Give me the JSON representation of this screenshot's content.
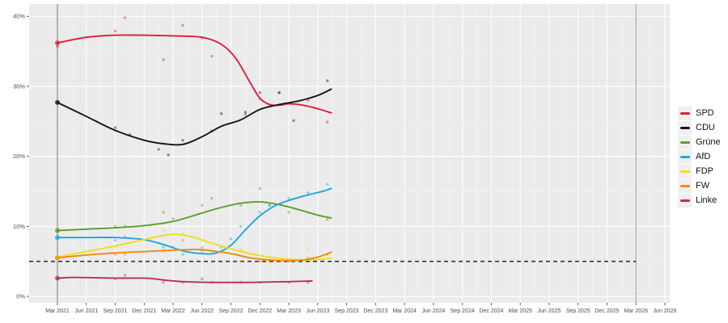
{
  "chart_data": {
    "type": "line",
    "title": "",
    "description": "State election poll tracker: smoothed trend lines with individual poll scatter points, 5% threshold dashed line, election-date reference lines",
    "x_axis": {
      "tick_labels": [
        "Mar 2021",
        "Jun 2021",
        "Sep 2021",
        "Dec 2021",
        "Mar 2022",
        "Jun 2022",
        "Sep 2022",
        "Dec 2022",
        "Mar 2023",
        "Jun 2023",
        "Sep 2023",
        "Dec 2023",
        "Mar 2024",
        "Jun 2024",
        "Sep 2024",
        "Dec 2024",
        "Mar 2025",
        "Jun 2025",
        "Sep 2025",
        "Dec 2025",
        "Mar 2026",
        "Jun 2026"
      ],
      "unit": "quarter"
    },
    "y_axis": {
      "tick_labels": [
        "0%",
        "10%",
        "20%",
        "30%",
        "40%"
      ],
      "ticks": [
        0,
        10,
        20,
        30,
        40
      ],
      "minor_ticks": [
        5,
        15,
        25,
        35
      ],
      "range": [
        0,
        42
      ]
    },
    "threshold_line": {
      "value": 5,
      "style": "dashed",
      "color": "#333333",
      "meaning": "5% threshold"
    },
    "reference_lines": [
      {
        "x_label": "Mar 2021",
        "t_months": 0,
        "color": "#7a7a7a",
        "meaning": "last election"
      },
      {
        "x_label": "Mar 2026",
        "t_months": 60,
        "color": "#9b9b9b",
        "meaning": "next election"
      }
    ],
    "election_2021": {
      "SPD": 35.7,
      "CDU": 27.7,
      "Gruene": 9.3,
      "AfD": 8.3,
      "FDP": 5.5,
      "FW": 5.4,
      "Linke": 2.5
    },
    "series": [
      {
        "name": "SPD",
        "color": "#e01a3c",
        "trend": [
          [
            0,
            36.2
          ],
          [
            3,
            37.0
          ],
          [
            6,
            37.3
          ],
          [
            9,
            37.3
          ],
          [
            12,
            37.2
          ],
          [
            15,
            37.0
          ],
          [
            17,
            36.0
          ],
          [
            18.5,
            34.0
          ],
          [
            20,
            30.5
          ],
          [
            21,
            28.3
          ],
          [
            22,
            27.4
          ],
          [
            23,
            27.3
          ],
          [
            24,
            27.5
          ],
          [
            25.5,
            27.3
          ],
          [
            27,
            26.8
          ],
          [
            28.4,
            26.2
          ]
        ],
        "polls": [
          [
            0,
            35.7
          ],
          [
            6,
            37.9
          ],
          [
            7,
            39.8
          ],
          [
            11,
            33.8
          ],
          [
            13,
            38.7
          ],
          [
            15,
            36.9
          ],
          [
            16,
            34.3
          ],
          [
            19.5,
            26.0
          ],
          [
            21,
            28.2
          ],
          [
            23,
            29.1
          ],
          [
            26,
            28.0
          ],
          [
            28,
            24.9
          ]
        ]
      },
      {
        "name": "CDU",
        "color": "#161616",
        "trend": [
          [
            0,
            27.7
          ],
          [
            3,
            25.7
          ],
          [
            6,
            23.7
          ],
          [
            9,
            22.3
          ],
          [
            11,
            21.8
          ],
          [
            13,
            21.7
          ],
          [
            15,
            22.8
          ],
          [
            17,
            24.3
          ],
          [
            19,
            25.2
          ],
          [
            21,
            26.7
          ],
          [
            23,
            27.4
          ],
          [
            25,
            27.9
          ],
          [
            27,
            28.7
          ],
          [
            28.4,
            29.6
          ]
        ],
        "polls": [
          [
            0,
            27.7
          ],
          [
            6,
            24.1
          ],
          [
            7.5,
            23.1
          ],
          [
            10.5,
            21.0
          ],
          [
            11.5,
            20.2
          ],
          [
            13,
            22.3
          ],
          [
            16,
            23.6
          ],
          [
            17,
            26.1
          ],
          [
            19.5,
            26.3
          ],
          [
            21,
            29.1
          ],
          [
            23,
            29.1
          ],
          [
            24.5,
            25.1
          ],
          [
            28,
            30.8
          ]
        ]
      },
      {
        "name": "Grüne",
        "color": "#5b9e30",
        "trend": [
          [
            0,
            9.4
          ],
          [
            3,
            9.6
          ],
          [
            6,
            9.8
          ],
          [
            9,
            10.1
          ],
          [
            12,
            10.7
          ],
          [
            15,
            11.9
          ],
          [
            17,
            12.7
          ],
          [
            19,
            13.3
          ],
          [
            21,
            13.5
          ],
          [
            23,
            13.1
          ],
          [
            25,
            12.4
          ],
          [
            27,
            11.6
          ],
          [
            28.4,
            11.2
          ]
        ],
        "polls": [
          [
            0,
            9.3
          ],
          [
            6,
            10.0
          ],
          [
            7,
            10.0
          ],
          [
            11,
            12.0
          ],
          [
            12,
            11.1
          ],
          [
            15,
            13.0
          ],
          [
            16,
            14.0
          ],
          [
            19,
            13.0
          ],
          [
            21,
            15.4
          ],
          [
            22,
            13.0
          ],
          [
            24,
            12.0
          ],
          [
            26,
            12.0
          ],
          [
            28,
            11.0
          ]
        ]
      },
      {
        "name": "AfD",
        "color": "#19a8e0",
        "trend": [
          [
            0,
            8.4
          ],
          [
            3,
            8.4
          ],
          [
            6,
            8.4
          ],
          [
            9,
            8.1
          ],
          [
            11,
            7.4
          ],
          [
            13,
            6.5
          ],
          [
            15,
            6.1
          ],
          [
            16.5,
            6.2
          ],
          [
            18,
            7.3
          ],
          [
            19.5,
            9.5
          ],
          [
            21,
            11.5
          ],
          [
            22.5,
            12.9
          ],
          [
            24,
            13.7
          ],
          [
            26,
            14.5
          ],
          [
            27.5,
            15.0
          ],
          [
            28.4,
            15.4
          ]
        ],
        "polls": [
          [
            0,
            8.3
          ],
          [
            6,
            8.0
          ],
          [
            7,
            8.5
          ],
          [
            11,
            7.0
          ],
          [
            13,
            6.0
          ],
          [
            15,
            6.5
          ],
          [
            17,
            7.0
          ],
          [
            18,
            8.2
          ],
          [
            19,
            10.0
          ],
          [
            21,
            12.0
          ],
          [
            22,
            13.0
          ],
          [
            24,
            14.0
          ],
          [
            26,
            14.8
          ],
          [
            28,
            16.0
          ]
        ]
      },
      {
        "name": "FDP",
        "color": "#f0dd1d",
        "trend": [
          [
            0,
            5.6
          ],
          [
            3,
            6.4
          ],
          [
            6,
            7.2
          ],
          [
            9,
            8.1
          ],
          [
            11,
            8.7
          ],
          [
            12.5,
            8.85
          ],
          [
            14,
            8.5
          ],
          [
            16,
            7.6
          ],
          [
            18,
            6.8
          ],
          [
            20,
            6.1
          ],
          [
            22,
            5.6
          ],
          [
            24,
            5.3
          ],
          [
            26,
            5.2
          ],
          [
            27.5,
            5.3
          ],
          [
            28.4,
            5.5
          ]
        ],
        "polls": [
          [
            0,
            5.5
          ],
          [
            6,
            7.0
          ],
          [
            7,
            7.5
          ],
          [
            11,
            9.5
          ],
          [
            12,
            8.1
          ],
          [
            13,
            9.0
          ],
          [
            15,
            8.0
          ],
          [
            17,
            7.1
          ],
          [
            19,
            6.7
          ],
          [
            21,
            5.0
          ],
          [
            22,
            5.5
          ],
          [
            24,
            5.0
          ],
          [
            26,
            6.7
          ],
          [
            28,
            6.0
          ]
        ]
      },
      {
        "name": "FW",
        "color": "#ee8c0e",
        "trend": [
          [
            0,
            5.5
          ],
          [
            3,
            5.9
          ],
          [
            6,
            6.2
          ],
          [
            9,
            6.4
          ],
          [
            12,
            6.6
          ],
          [
            14.5,
            6.7
          ],
          [
            16,
            6.5
          ],
          [
            18,
            6.1
          ],
          [
            20,
            5.5
          ],
          [
            22,
            5.2
          ],
          [
            24,
            5.1
          ],
          [
            25.5,
            5.2
          ],
          [
            27,
            5.6
          ],
          [
            28.4,
            6.3
          ]
        ],
        "polls": [
          [
            0,
            5.4
          ],
          [
            6,
            6.0
          ],
          [
            7,
            6.0
          ],
          [
            11,
            6.5
          ],
          [
            12,
            7.1
          ],
          [
            13,
            8.0
          ],
          [
            15,
            7.0
          ],
          [
            16,
            6.5
          ],
          [
            19,
            5.0
          ],
          [
            21,
            5.0
          ],
          [
            22,
            5.0
          ],
          [
            24,
            5.0
          ],
          [
            26,
            5.5
          ],
          [
            28,
            6.0
          ]
        ]
      },
      {
        "name": "Linke",
        "color": "#b5305f",
        "trend": [
          [
            0,
            2.6
          ],
          [
            2,
            2.7
          ],
          [
            6,
            2.6
          ],
          [
            9,
            2.6
          ],
          [
            10,
            2.5
          ],
          [
            12,
            2.2
          ],
          [
            14,
            2.05
          ],
          [
            16,
            2.0
          ],
          [
            18,
            2.0
          ],
          [
            20,
            2.0
          ],
          [
            22,
            2.05
          ],
          [
            24,
            2.1
          ],
          [
            26.4,
            2.2
          ]
        ],
        "polls": [
          [
            0,
            2.5
          ],
          [
            6,
            2.5
          ],
          [
            7,
            3.0
          ],
          [
            11,
            2.0
          ],
          [
            13,
            2.0
          ],
          [
            15,
            2.5
          ],
          [
            16,
            2.0
          ],
          [
            19,
            2.0
          ],
          [
            21,
            2.0
          ],
          [
            24,
            2.0
          ],
          [
            26,
            2.0
          ]
        ]
      }
    ],
    "legend": {
      "position": "right",
      "entries": [
        "SPD",
        "CDU",
        "Grüne",
        "AfD",
        "FDP",
        "FW",
        "Linke"
      ]
    },
    "panel": {
      "bg": "#ebebeb",
      "grid_major": "#ffffff",
      "grid_minor": "#ffffff",
      "tick_color": "#333333",
      "label_color": "#4d4d4d"
    }
  }
}
